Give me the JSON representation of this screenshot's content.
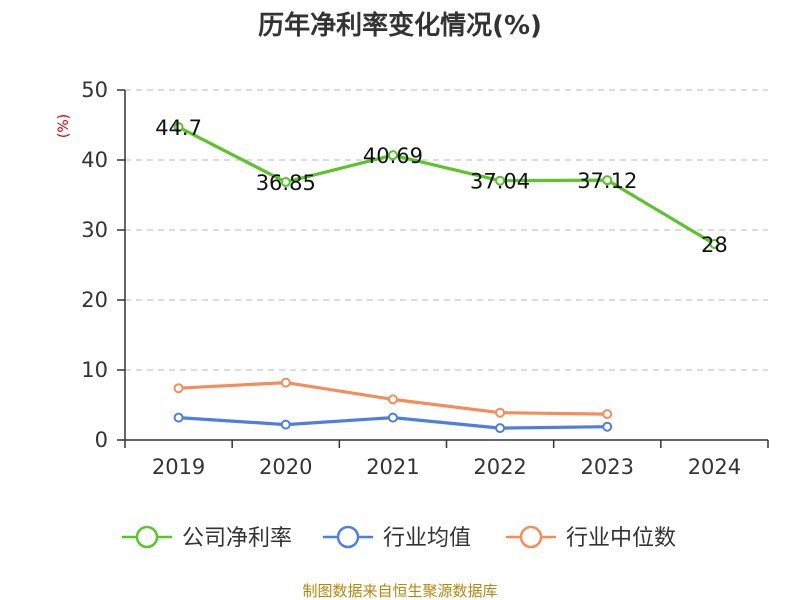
{
  "chart_data": {
    "type": "line",
    "title": "历年净利率变化情况(%)",
    "ylabel": "(%)",
    "xlabel": "",
    "categories": [
      "2019",
      "2020",
      "2021",
      "2022",
      "2023",
      "2024"
    ],
    "ylim": [
      0,
      50
    ],
    "yticks": [
      0,
      10,
      20,
      30,
      40,
      50
    ],
    "grid": true,
    "legend_position": "bottom",
    "series": [
      {
        "name": "公司净利率",
        "color": "#5ac429",
        "values": [
          44.7,
          36.85,
          40.69,
          37.04,
          37.12,
          28
        ],
        "labels": [
          "44.7",
          "36.85",
          "40.69",
          "37.04",
          "37.12",
          "28"
        ]
      },
      {
        "name": "行业均值",
        "color": "#4e7fde",
        "values": [
          3.2,
          2.2,
          3.2,
          1.7,
          1.9,
          null
        ]
      },
      {
        "name": "行业中位数",
        "color": "#f58c5a",
        "values": [
          7.4,
          8.2,
          5.8,
          3.9,
          3.7,
          null
        ]
      }
    ]
  },
  "source": "制图数据来自恒生聚源数据库",
  "colors": {
    "ylabel": "#cc0000",
    "source": "#b8860b",
    "grid": "#c8c8c8",
    "axis": "#333333"
  }
}
